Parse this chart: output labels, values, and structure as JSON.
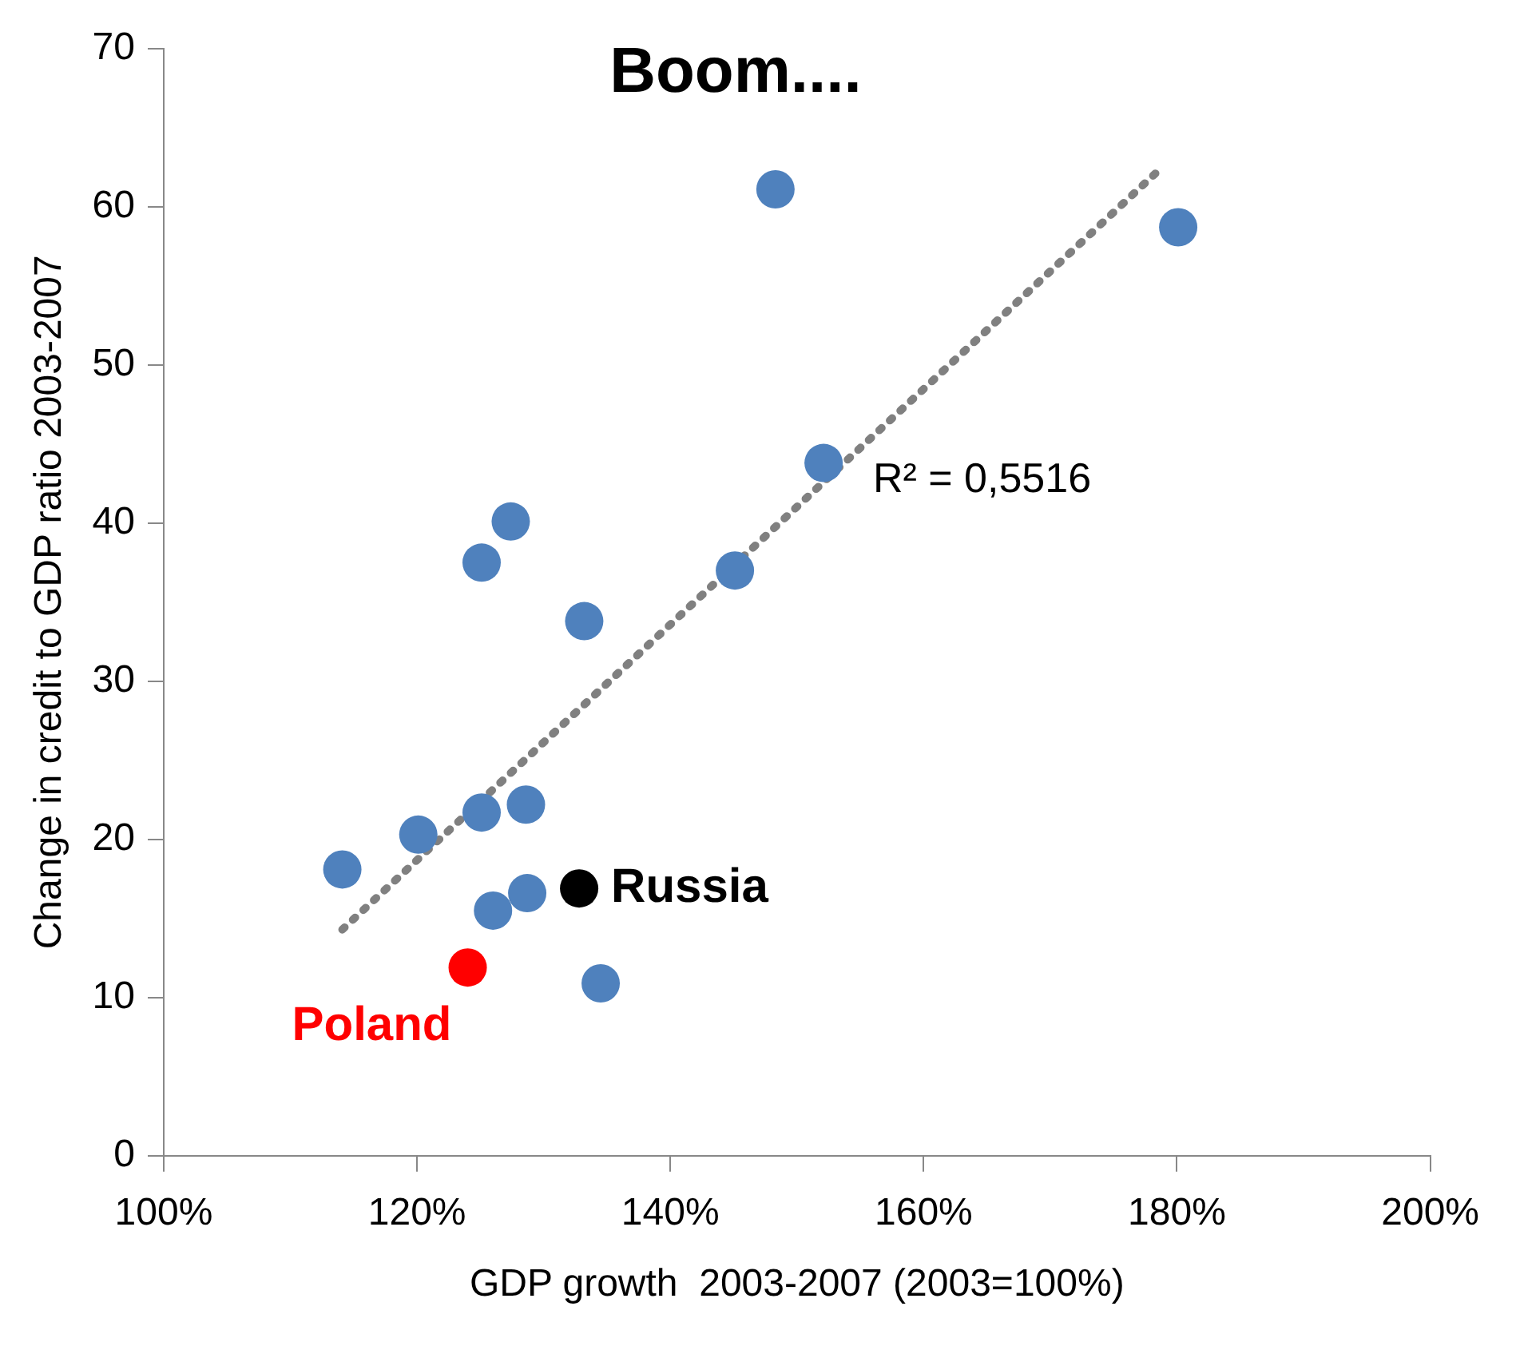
{
  "chart_data": {
    "type": "scatter",
    "title": "Boom....",
    "xlabel": "GDP growth  2003-2007 (2003=100%)",
    "ylabel": "Change in credit to GDP ratio 2003-2007",
    "xlim": [
      100,
      200
    ],
    "xticks": [
      {
        "value": 100,
        "label": "100%"
      },
      {
        "value": 120,
        "label": "120%"
      },
      {
        "value": 140,
        "label": "140%"
      },
      {
        "value": 160,
        "label": "160%"
      },
      {
        "value": 180,
        "label": "180%"
      },
      {
        "value": 200,
        "label": "200%"
      }
    ],
    "ylim": [
      0,
      70
    ],
    "yticks": [
      0,
      10,
      20,
      30,
      40,
      50,
      60,
      70
    ],
    "grid": false,
    "legend": false,
    "marker": "circle",
    "series": [
      {
        "color": "#4f81bd",
        "x": [
          114.1,
          120.1,
          125.1,
          128.6,
          126.0,
          128.7,
          134.5,
          125.1,
          127.4,
          133.2,
          145.1,
          152.1,
          148.3,
          180.1
        ],
        "values": [
          18.1,
          20.3,
          21.7,
          22.2,
          15.5,
          16.6,
          10.9,
          37.5,
          40.1,
          33.8,
          37.0,
          43.8,
          61.1,
          58.7
        ]
      },
      {
        "name": "Russia",
        "color": "#000000",
        "x": [
          132.8
        ],
        "values": [
          16.9
        ]
      },
      {
        "name": "Poland",
        "color": "#ff0000",
        "x": [
          124.0
        ],
        "values": [
          11.9
        ]
      },
      {
        "type": "line",
        "color": "#808080",
        "line_style": "dotted",
        "marker": "none",
        "x": [
          114.1,
          178.7
        ],
        "values": [
          14.3,
          62.4
        ]
      }
    ],
    "annotations": [
      "R² = 0,5516"
    ]
  }
}
